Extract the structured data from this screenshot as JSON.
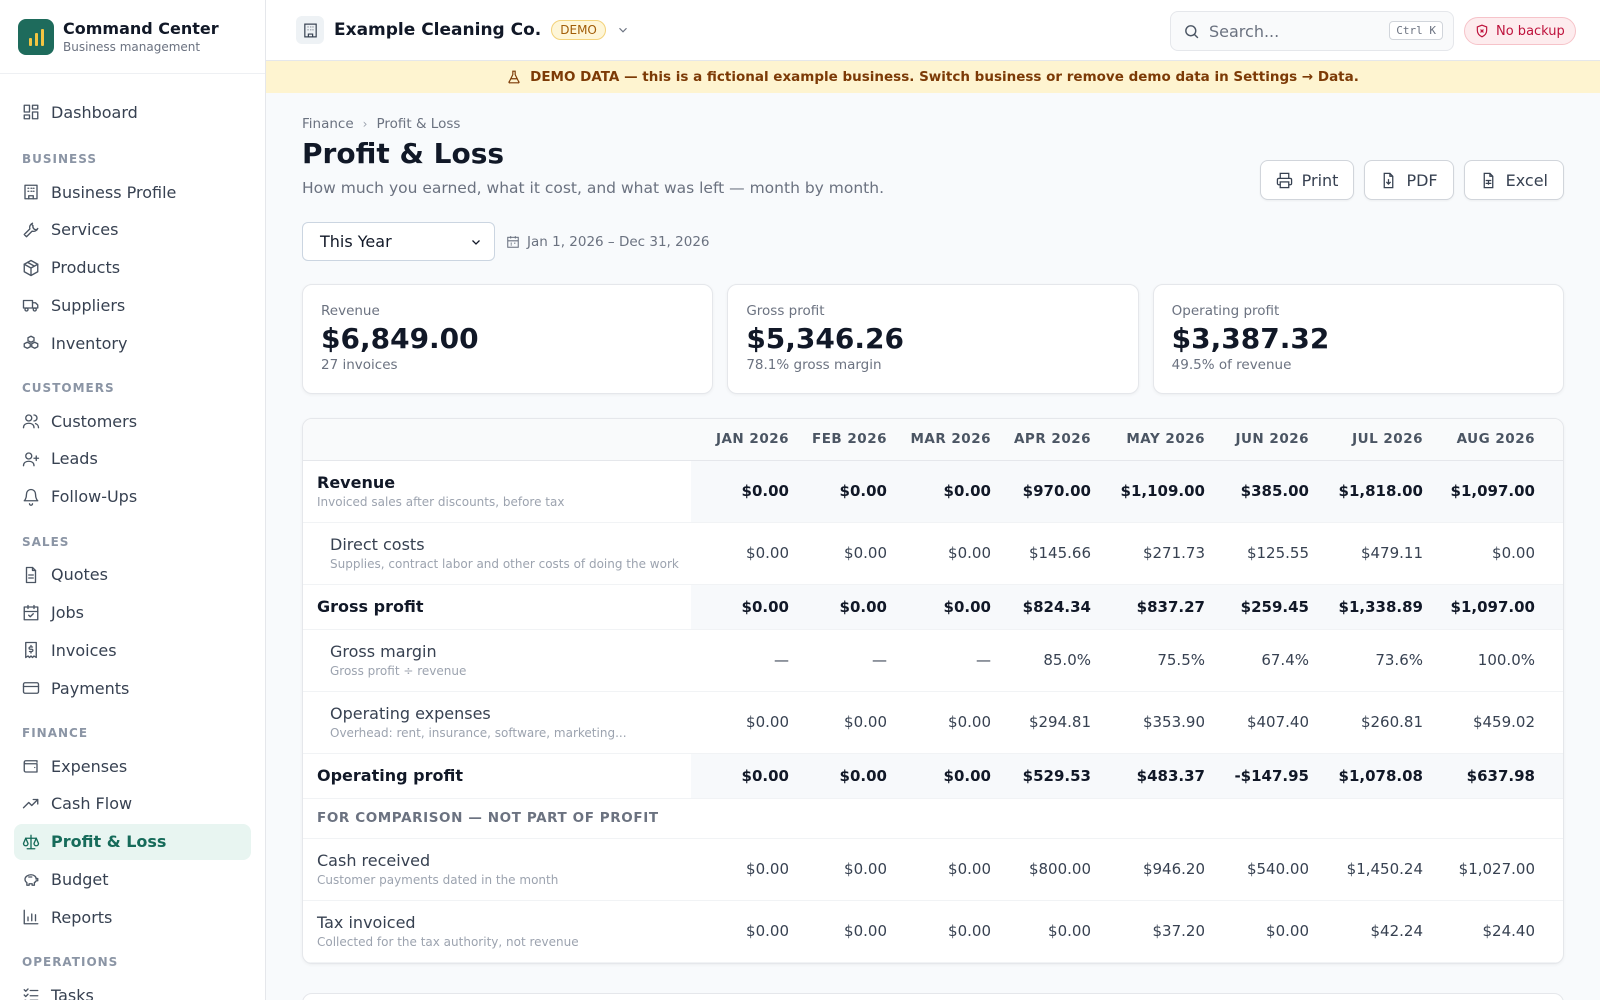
{
  "brand": {
    "title": "Command Center",
    "subtitle": "Business management"
  },
  "sidebar": {
    "top_item": {
      "label": "Dashboard",
      "icon": "dashboard-icon"
    },
    "sections": [
      {
        "title": "BUSINESS",
        "items": [
          {
            "label": "Business Profile",
            "icon": "building-icon"
          },
          {
            "label": "Services",
            "icon": "wrench-icon"
          },
          {
            "label": "Products",
            "icon": "package-icon"
          },
          {
            "label": "Suppliers",
            "icon": "truck-icon"
          },
          {
            "label": "Inventory",
            "icon": "boxes-icon"
          }
        ]
      },
      {
        "title": "CUSTOMERS",
        "items": [
          {
            "label": "Customers",
            "icon": "users-icon"
          },
          {
            "label": "Leads",
            "icon": "user-plus-icon"
          },
          {
            "label": "Follow-Ups",
            "icon": "bell-icon"
          }
        ]
      },
      {
        "title": "SALES",
        "items": [
          {
            "label": "Quotes",
            "icon": "file-text-icon"
          },
          {
            "label": "Jobs",
            "icon": "calendar-check-icon"
          },
          {
            "label": "Invoices",
            "icon": "receipt-icon"
          },
          {
            "label": "Payments",
            "icon": "credit-card-icon"
          }
        ]
      },
      {
        "title": "FINANCE",
        "items": [
          {
            "label": "Expenses",
            "icon": "wallet-icon"
          },
          {
            "label": "Cash Flow",
            "icon": "trending-up-icon"
          },
          {
            "label": "Profit & Loss",
            "icon": "scale-icon",
            "active": true
          },
          {
            "label": "Budget",
            "icon": "piggy-bank-icon"
          },
          {
            "label": "Reports",
            "icon": "bar-chart-icon"
          }
        ]
      },
      {
        "title": "OPERATIONS",
        "items": [
          {
            "label": "Tasks",
            "icon": "list-checks-icon"
          }
        ]
      }
    ]
  },
  "topbar": {
    "business_name": "Example Cleaning Co.",
    "badge": "DEMO",
    "search_placeholder": "Search...",
    "shortcut": "Ctrl K",
    "backup_status": "No backup"
  },
  "banner": {
    "text": "DEMO DATA — this is a fictional example business. Switch business or remove demo data in Settings → Data."
  },
  "breadcrumb": [
    "Finance",
    "Profit & Loss"
  ],
  "page": {
    "title": "Profit & Loss",
    "subtitle": "How much you earned, what it cost, and what was left — month by month."
  },
  "actions": {
    "print": "Print",
    "pdf": "PDF",
    "excel": "Excel"
  },
  "period": {
    "selected": "This Year",
    "range": "Jan 1, 2026 – Dec 31, 2026"
  },
  "cards": [
    {
      "label": "Revenue",
      "value": "$6,849.00",
      "note": "27 invoices"
    },
    {
      "label": "Gross profit",
      "value": "$5,346.26",
      "note": "78.1% gross margin"
    },
    {
      "label": "Operating profit",
      "value": "$3,387.32",
      "note": "49.5% of revenue"
    }
  ],
  "table": {
    "columns": [
      "JAN 2026",
      "FEB 2026",
      "MAR 2026",
      "APR 2026",
      "MAY 2026",
      "JUN 2026",
      "JUL 2026",
      "AUG 2026"
    ],
    "rows": [
      {
        "label": "Revenue",
        "sub": "Invoiced sales after discounts, before tax",
        "values": [
          "$0.00",
          "$0.00",
          "$0.00",
          "$970.00",
          "$1,109.00",
          "$385.00",
          "$1,818.00",
          "$1,097.00"
        ]
      },
      {
        "label": "Direct costs",
        "sub": "Supplies, contract labor and other costs of doing the work",
        "values": [
          "$0.00",
          "$0.00",
          "$0.00",
          "$145.66",
          "$271.73",
          "$125.55",
          "$479.11",
          "$0.00"
        ]
      },
      {
        "label": "Gross profit",
        "sub": "",
        "values": [
          "$0.00",
          "$0.00",
          "$0.00",
          "$824.34",
          "$837.27",
          "$259.45",
          "$1,338.89",
          "$1,097.00"
        ]
      },
      {
        "label": "Gross margin",
        "sub": "Gross profit ÷ revenue",
        "values": [
          "—",
          "—",
          "—",
          "85.0%",
          "75.5%",
          "67.4%",
          "73.6%",
          "100.0%"
        ]
      },
      {
        "label": "Operating expenses",
        "sub": "Overhead: rent, insurance, software, marketing...",
        "values": [
          "$0.00",
          "$0.00",
          "$0.00",
          "$294.81",
          "$353.90",
          "$407.40",
          "$260.81",
          "$459.02"
        ]
      },
      {
        "label": "Operating profit",
        "sub": "",
        "values": [
          "$0.00",
          "$0.00",
          "$0.00",
          "$529.53",
          "$483.37",
          "-$147.95",
          "$1,078.08",
          "$637.98"
        ]
      },
      {
        "section": "FOR COMPARISON — NOT PART OF PROFIT"
      },
      {
        "label": "Cash received",
        "sub": "Customer payments dated in the month",
        "values": [
          "$0.00",
          "$0.00",
          "$0.00",
          "$800.00",
          "$946.20",
          "$540.00",
          "$1,450.24",
          "$1,027.00"
        ]
      },
      {
        "label": "Tax invoiced",
        "sub": "Collected for the tax authority, not revenue",
        "values": [
          "$0.00",
          "$0.00",
          "$0.00",
          "$0.00",
          "$37.20",
          "$0.00",
          "$42.24",
          "$24.40"
        ]
      }
    ]
  },
  "colors": {
    "accent": "#1e6b5c",
    "negative": "#be123c",
    "banner_bg": "#fef4d0"
  }
}
